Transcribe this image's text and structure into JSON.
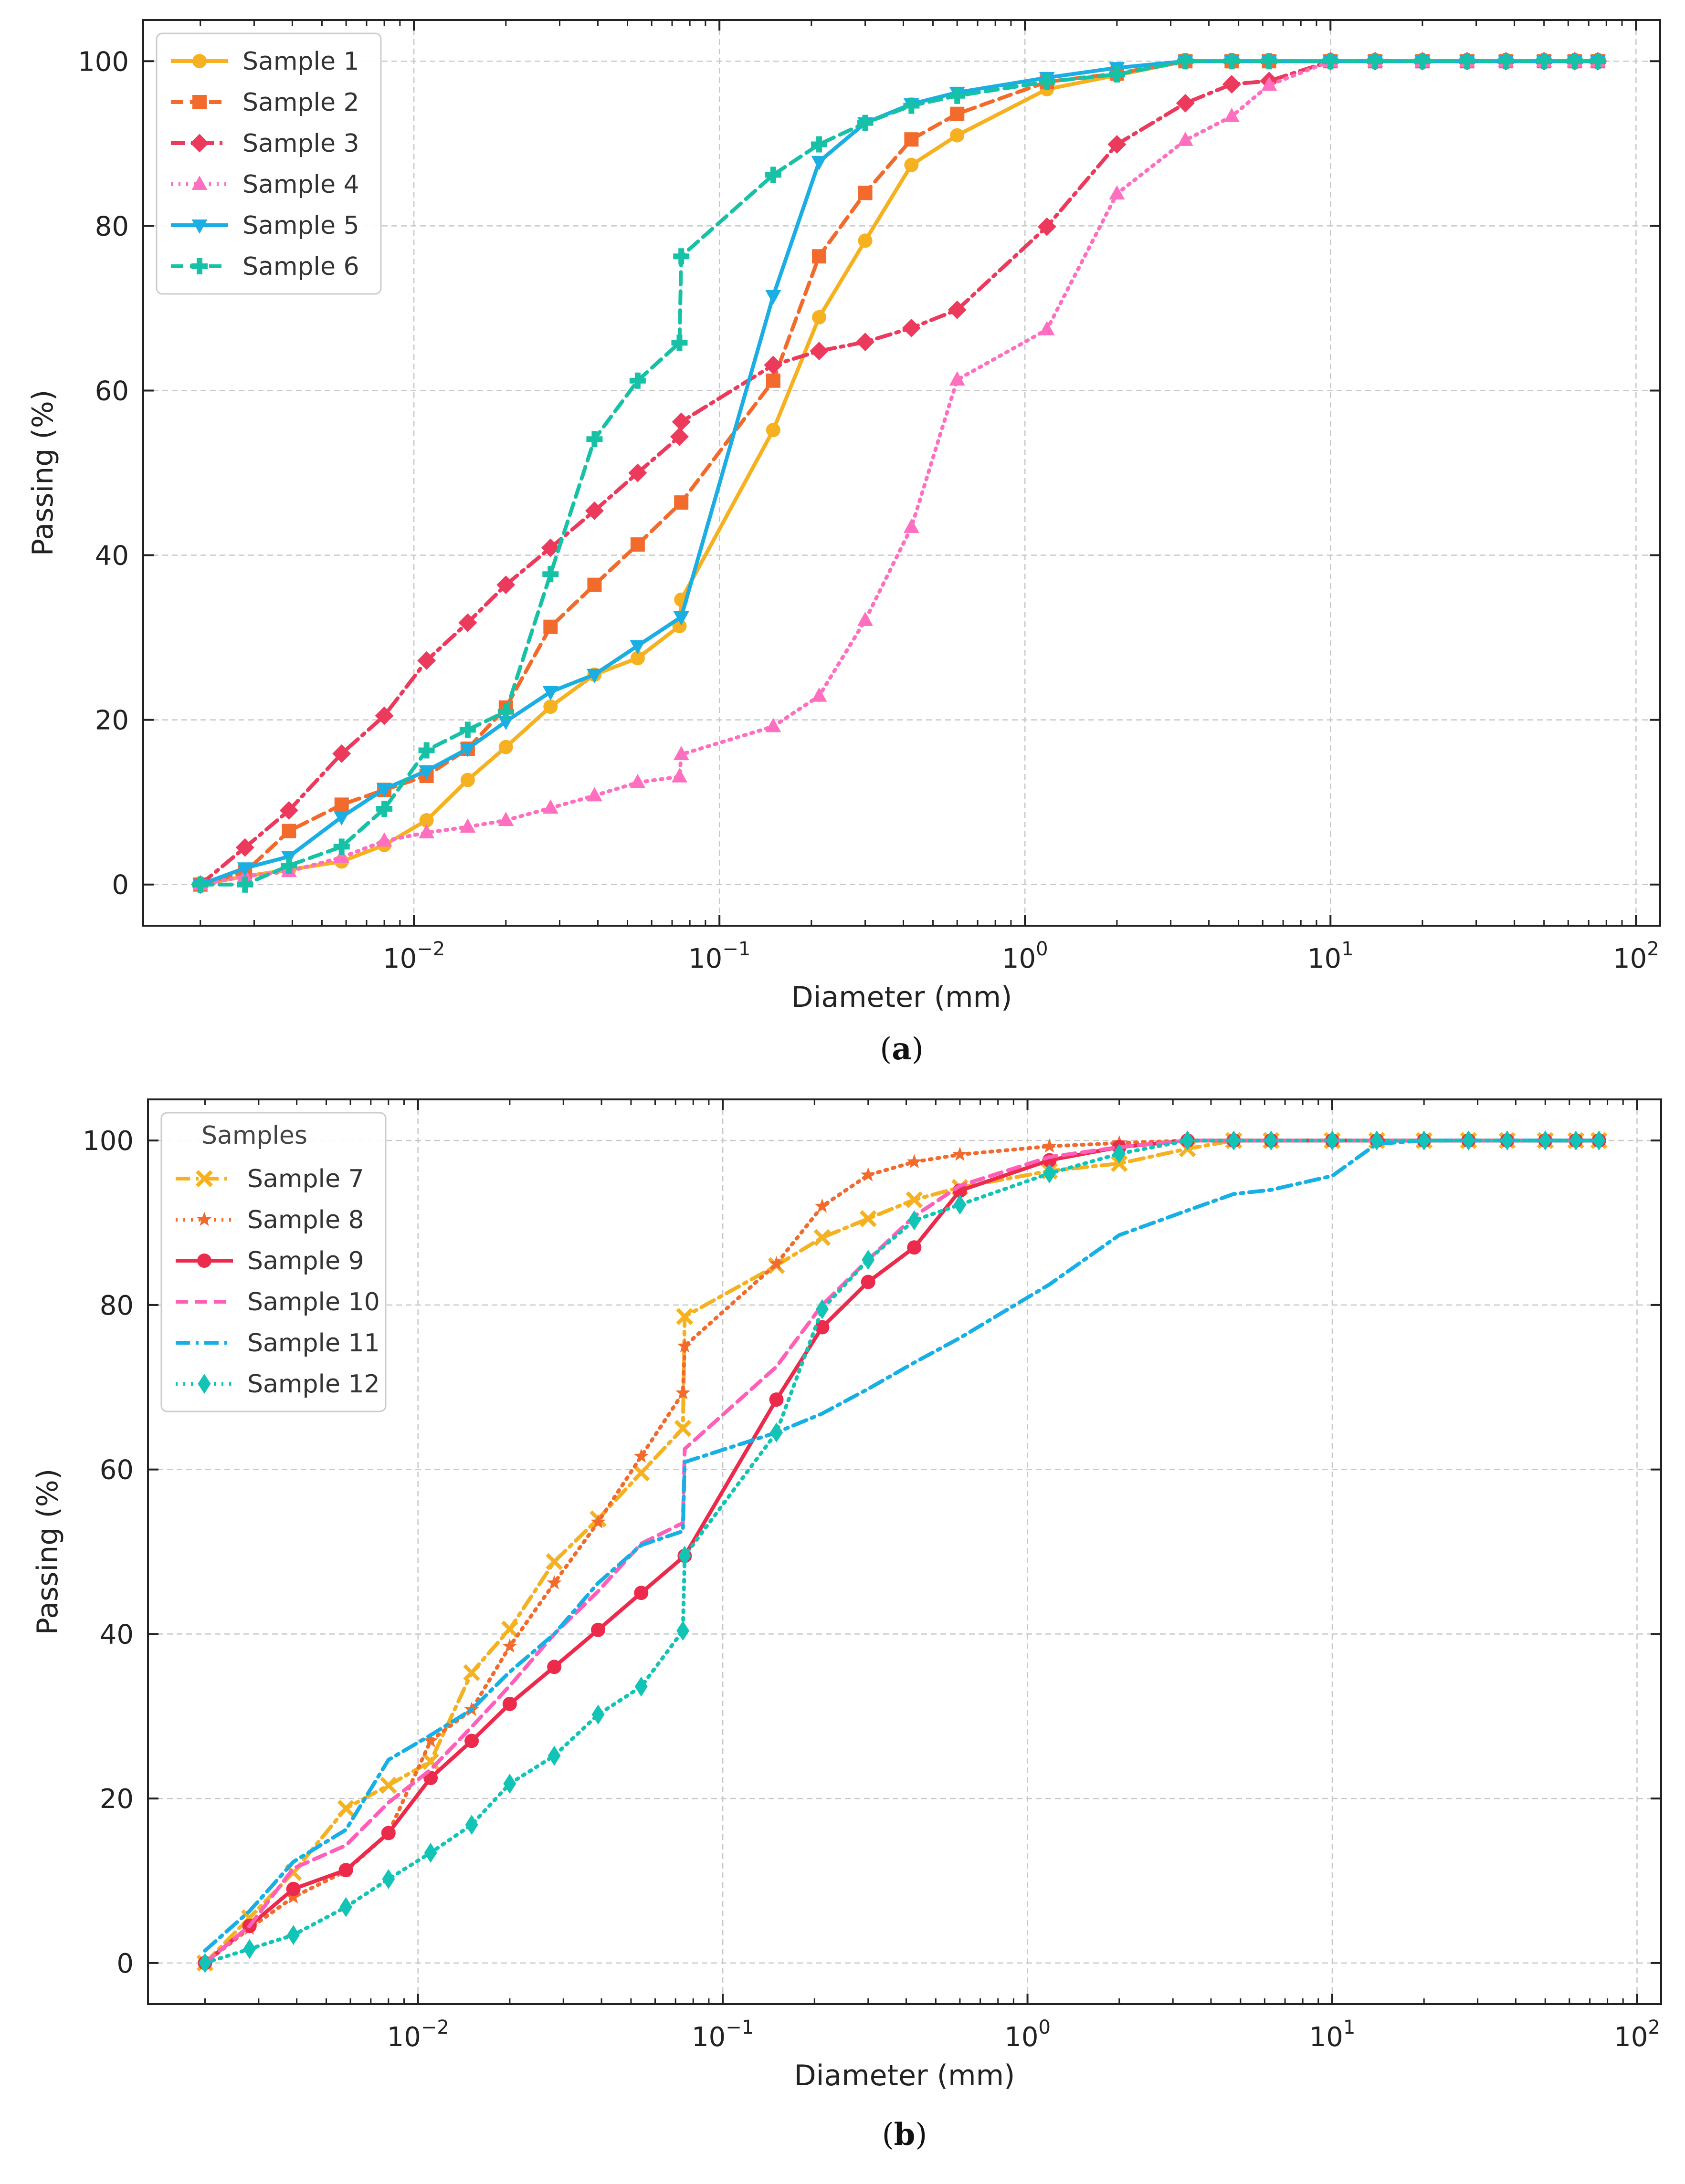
{
  "chart_data": [
    {
      "type": "line",
      "panel_label": "a",
      "xlabel": "Diameter (mm)",
      "ylabel": "Passing (%)",
      "xscale": "log",
      "xlim": [
        0.0013,
        120
      ],
      "ylim": [
        -5,
        105
      ],
      "yticks": [
        0,
        20,
        40,
        60,
        80,
        100
      ],
      "xticks": [
        {
          "value": 0.01,
          "base": "10",
          "exp": "−2"
        },
        {
          "value": 0.1,
          "base": "10",
          "exp": "−1"
        },
        {
          "value": 1,
          "base": "10",
          "exp": "0"
        },
        {
          "value": 10,
          "base": "10",
          "exp": "1"
        },
        {
          "value": 100,
          "base": "10",
          "exp": "2"
        }
      ],
      "grid": true,
      "legend": {
        "title": "",
        "position": "top-left"
      },
      "series": [
        {
          "name": "Sample 1",
          "color": "#f5b120",
          "dash": "solid",
          "marker": "circle",
          "x": [
            0.002,
            0.0028,
            0.0039,
            0.0058,
            0.008,
            0.011,
            0.015,
            0.02,
            0.028,
            0.039,
            0.054,
            0.074,
            0.075,
            0.15,
            0.212,
            0.3,
            0.425,
            0.6,
            1.18,
            2,
            3.35,
            4.75,
            6.3,
            10,
            14,
            20,
            28,
            37.5,
            50,
            63,
            75
          ],
          "y": [
            0,
            1,
            1.8,
            2.8,
            4.8,
            7.8,
            12.7,
            16.7,
            21.6,
            25.5,
            27.5,
            31.4,
            34.6,
            55.2,
            68.9,
            78.2,
            87.4,
            91,
            96.6,
            98.3,
            100,
            100,
            100,
            100,
            100,
            100,
            100,
            100,
            100,
            100,
            100
          ]
        },
        {
          "name": "Sample 2",
          "color": "#f26b2c",
          "dash": "dashed",
          "marker": "square",
          "x": [
            0.002,
            0.0028,
            0.0039,
            0.0058,
            0.008,
            0.011,
            0.015,
            0.02,
            0.028,
            0.039,
            0.054,
            0.075,
            0.15,
            0.212,
            0.3,
            0.425,
            0.6,
            1.18,
            2,
            3.35,
            4.75,
            6.3,
            10,
            14,
            20,
            28,
            37.5,
            50,
            63,
            75
          ],
          "y": [
            0,
            1.5,
            6.5,
            9.7,
            11.5,
            13.2,
            16.5,
            21.5,
            31.3,
            36.4,
            41.3,
            46.4,
            61.2,
            76.3,
            84,
            90.5,
            93.6,
            97.5,
            98.5,
            100,
            100,
            100,
            100,
            100,
            100,
            100,
            100,
            100,
            100,
            100
          ]
        },
        {
          "name": "Sample 3",
          "color": "#ec3a5c",
          "dash": "dashdot",
          "marker": "diamond",
          "x": [
            0.002,
            0.0028,
            0.0039,
            0.0058,
            0.008,
            0.011,
            0.015,
            0.02,
            0.028,
            0.039,
            0.054,
            0.074,
            0.075,
            0.15,
            0.212,
            0.3,
            0.425,
            0.6,
            1.18,
            2,
            3.35,
            4.75,
            6.3,
            10,
            14,
            20,
            28,
            37.5,
            50,
            63,
            75
          ],
          "y": [
            0,
            4.5,
            9,
            15.9,
            20.5,
            27.2,
            31.8,
            36.4,
            40.9,
            45.4,
            50,
            54.4,
            56.2,
            63.1,
            64.8,
            65.9,
            67.6,
            69.8,
            79.9,
            89.9,
            94.9,
            97.2,
            97.6,
            100,
            100,
            100,
            100,
            100,
            100,
            100,
            100
          ]
        },
        {
          "name": "Sample 4",
          "color": "#ff6fc0",
          "dash": "dotted",
          "marker": "triangle-up",
          "x": [
            0.002,
            0.0028,
            0.0039,
            0.0058,
            0.008,
            0.011,
            0.015,
            0.02,
            0.028,
            0.039,
            0.054,
            0.074,
            0.075,
            0.15,
            0.212,
            0.3,
            0.425,
            0.6,
            1.18,
            2,
            3.35,
            4.75,
            6.3,
            10,
            14,
            20,
            28,
            37.5,
            50,
            63,
            75
          ],
          "y": [
            0,
            1,
            1.6,
            3.3,
            5.3,
            6.3,
            7,
            7.8,
            9.3,
            10.8,
            12.4,
            13.1,
            15.8,
            19.2,
            22.9,
            32.1,
            43.4,
            61.3,
            67.4,
            83.9,
            90.4,
            93.3,
            97.1,
            100,
            100,
            100,
            100,
            100,
            100,
            100,
            100
          ]
        },
        {
          "name": "Sample 5",
          "color": "#1aaee3",
          "dash": "solid",
          "marker": "triangle-down",
          "x": [
            0.002,
            0.0028,
            0.0039,
            0.0058,
            0.008,
            0.011,
            0.015,
            0.02,
            0.028,
            0.039,
            0.054,
            0.075,
            0.15,
            0.212,
            0.3,
            0.425,
            0.6,
            1.18,
            2,
            3.35,
            4.75,
            6.3,
            10,
            14,
            20,
            28,
            37.5,
            50,
            63,
            75
          ],
          "y": [
            0,
            2,
            3.4,
            8.2,
            11.6,
            13.8,
            16.5,
            19.8,
            23.4,
            25.5,
            29,
            32.5,
            71.5,
            87.8,
            92.5,
            94.8,
            96.2,
            98,
            99.2,
            100,
            100,
            100,
            100,
            100,
            100,
            100,
            100,
            100,
            100,
            100
          ]
        },
        {
          "name": "Sample 6",
          "color": "#17c1a6",
          "dash": "dashed",
          "marker": "plus",
          "x": [
            0.002,
            0.0028,
            0.0039,
            0.0058,
            0.008,
            0.011,
            0.015,
            0.02,
            0.028,
            0.039,
            0.054,
            0.074,
            0.075,
            0.15,
            0.212,
            0.3,
            0.425,
            0.6,
            1.18,
            2,
            3.35,
            4.75,
            6.3,
            10,
            14,
            20,
            28,
            37.5,
            50,
            63,
            75
          ],
          "y": [
            0,
            0,
            2.3,
            4.6,
            9.2,
            16.3,
            18.8,
            21,
            37.7,
            54.1,
            61.2,
            65.8,
            76.3,
            86.2,
            89.9,
            92.5,
            94.6,
            95.8,
            97.5,
            98.4,
            100,
            100,
            100,
            100,
            100,
            100,
            100,
            100,
            100,
            100,
            100
          ]
        }
      ]
    },
    {
      "type": "line",
      "panel_label": "b",
      "xlabel": "Diameter (mm)",
      "ylabel": "Passing (%)",
      "xscale": "log",
      "xlim": [
        0.0013,
        120
      ],
      "ylim": [
        -5,
        105
      ],
      "yticks": [
        0,
        20,
        40,
        60,
        80,
        100
      ],
      "xticks": [
        {
          "value": 0.01,
          "base": "10",
          "exp": "−2"
        },
        {
          "value": 0.1,
          "base": "10",
          "exp": "−1"
        },
        {
          "value": 1,
          "base": "10",
          "exp": "0"
        },
        {
          "value": 10,
          "base": "10",
          "exp": "1"
        },
        {
          "value": 100,
          "base": "10",
          "exp": "2"
        }
      ],
      "grid": true,
      "legend": {
        "title": "Samples",
        "position": "top-left"
      },
      "series": [
        {
          "name": "Sample 7",
          "color": "#f5b120",
          "dash": "dashdot",
          "marker": "x",
          "x": [
            0.002,
            0.0028,
            0.0039,
            0.0058,
            0.008,
            0.011,
            0.015,
            0.02,
            0.028,
            0.039,
            0.054,
            0.074,
            0.075,
            0.15,
            0.212,
            0.3,
            0.425,
            0.6,
            1.18,
            2,
            3.35,
            4.75,
            6.3,
            10,
            14,
            20,
            28,
            37.5,
            50,
            63,
            75
          ],
          "y": [
            0,
            5.5,
            11,
            18.8,
            21.6,
            24.5,
            35.3,
            40.6,
            48.8,
            54,
            59.6,
            65,
            78.6,
            84.8,
            88.2,
            90.5,
            92.8,
            94.3,
            96.3,
            97.2,
            99,
            100,
            100,
            100,
            100,
            100,
            100,
            100,
            100,
            100,
            100
          ]
        },
        {
          "name": "Sample 8",
          "color": "#f26b2c",
          "dash": "dotted",
          "marker": "star",
          "x": [
            0.002,
            0.0028,
            0.0039,
            0.0058,
            0.008,
            0.011,
            0.015,
            0.02,
            0.028,
            0.039,
            0.054,
            0.074,
            0.075,
            0.15,
            0.212,
            0.3,
            0.425,
            0.6,
            1.18,
            2,
            3.35,
            4.75,
            6.3,
            10,
            14,
            20,
            28,
            37.5,
            50,
            63,
            75
          ],
          "y": [
            0,
            4.2,
            8,
            11.2,
            15.8,
            27,
            30.8,
            38.5,
            46.2,
            53.6,
            61.6,
            69.3,
            75,
            85,
            92,
            95.8,
            97.4,
            98.3,
            99.3,
            99.7,
            100,
            100,
            100,
            100,
            100,
            100,
            100,
            100,
            100,
            100,
            100
          ]
        },
        {
          "name": "Sample 9",
          "color": "#ec2a4c",
          "dash": "solid",
          "marker": "circle",
          "x": [
            0.002,
            0.0028,
            0.0039,
            0.0058,
            0.008,
            0.011,
            0.015,
            0.02,
            0.028,
            0.039,
            0.054,
            0.075,
            0.15,
            0.212,
            0.3,
            0.425,
            0.6,
            1.18,
            2,
            3.35,
            4.75,
            6.3,
            10,
            14,
            20,
            28,
            37.5,
            50,
            63,
            75
          ],
          "y": [
            0,
            4.5,
            9,
            11.3,
            15.8,
            22.5,
            27,
            31.5,
            36,
            40.5,
            45,
            49.5,
            68.5,
            77.3,
            82.8,
            87,
            93.9,
            97.6,
            99.2,
            100,
            100,
            100,
            100,
            100,
            100,
            100,
            100,
            100,
            100,
            100
          ]
        },
        {
          "name": "Sample 10",
          "color": "#ff5fb8",
          "dash": "dashed",
          "marker": "none",
          "x": [
            0.002,
            0.0028,
            0.0039,
            0.0058,
            0.008,
            0.011,
            0.015,
            0.02,
            0.028,
            0.039,
            0.054,
            0.074,
            0.075,
            0.15,
            0.212,
            0.3,
            0.425,
            0.6,
            1.18,
            2,
            3.35,
            4.75,
            6.3,
            10,
            14,
            20,
            28,
            37.5,
            50,
            63,
            75
          ],
          "y": [
            0,
            4.5,
            11.5,
            14.3,
            19.5,
            23.5,
            28.7,
            33.7,
            40,
            45.2,
            51,
            53.5,
            62.5,
            72.5,
            80,
            85.5,
            90.8,
            94.5,
            98,
            99.2,
            100,
            100,
            100,
            100,
            100,
            100,
            100,
            100,
            100,
            100,
            100
          ]
        },
        {
          "name": "Sample 11",
          "color": "#17b0e6",
          "dash": "dashdot",
          "marker": "none",
          "x": [
            0.002,
            0.0028,
            0.0039,
            0.0058,
            0.008,
            0.011,
            0.015,
            0.02,
            0.028,
            0.039,
            0.054,
            0.074,
            0.075,
            0.15,
            0.212,
            0.3,
            0.425,
            0.6,
            1.18,
            2,
            3.35,
            4.75,
            6.3,
            10,
            14,
            20,
            28,
            37.5,
            50,
            63,
            75
          ],
          "y": [
            1.5,
            6.3,
            12.3,
            16.2,
            24.7,
            27.7,
            30.8,
            35.4,
            40,
            46.2,
            50.8,
            52.5,
            60.9,
            64.5,
            66.8,
            69.8,
            73,
            76,
            82.5,
            88.5,
            91.5,
            93.5,
            94,
            95.7,
            99.6,
            100,
            100,
            100,
            100,
            100,
            100
          ]
        },
        {
          "name": "Sample 12",
          "color": "#12c4b5",
          "dash": "dotted",
          "marker": "thin-diamond",
          "x": [
            0.002,
            0.0028,
            0.0039,
            0.0058,
            0.008,
            0.011,
            0.015,
            0.02,
            0.028,
            0.039,
            0.054,
            0.074,
            0.075,
            0.15,
            0.212,
            0.3,
            0.425,
            0.6,
            1.18,
            2,
            3.35,
            4.75,
            6.3,
            10,
            14,
            20,
            28,
            37.5,
            50,
            63,
            75
          ],
          "y": [
            0,
            1.7,
            3.4,
            6.8,
            10.2,
            13.4,
            16.8,
            21.8,
            25.2,
            30.2,
            33.6,
            40.4,
            49.5,
            64.5,
            79.5,
            85.5,
            90.3,
            92.2,
            96,
            98.4,
            100,
            100,
            100,
            100,
            100,
            100,
            100,
            100,
            100,
            100,
            100
          ]
        }
      ]
    }
  ]
}
